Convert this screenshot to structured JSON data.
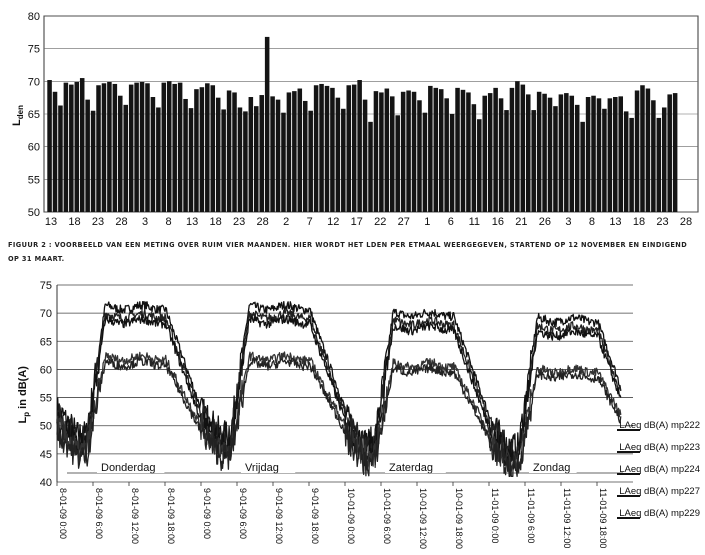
{
  "caption": "FIGUUR 2 : VOORBEELD VAN EEN METING OVER RUIM VIER MAANDEN. HIER WORDT HET LDEN PER ETMAAL WEERGEGEVEN, STARTEND OP 12 NOVEMBER EN EINDIGEND OP 31 MAART.",
  "chart_data": [
    {
      "type": "bar",
      "ylabel": "L",
      "ylabel_sub": "den",
      "ylim": [
        50,
        80
      ],
      "yticks": [
        50,
        55,
        60,
        65,
        70,
        75,
        80
      ],
      "grid": true,
      "x_tick_labels": [
        "13",
        "18",
        "23",
        "28",
        "3",
        "8",
        "13",
        "18",
        "23",
        "28",
        "2",
        "7",
        "12",
        "17",
        "22",
        "27",
        "1",
        "6",
        "11",
        "16",
        "21",
        "26",
        "3",
        "8",
        "13",
        "18",
        "23",
        "28"
      ],
      "values": [
        70.2,
        68.4,
        66.3,
        69.8,
        69.5,
        69.9,
        70.5,
        67.2,
        65.5,
        69.4,
        69.7,
        69.9,
        69.6,
        67.8,
        66.4,
        69.5,
        69.8,
        69.9,
        69.7,
        67.6,
        66.0,
        69.8,
        70.0,
        69.6,
        69.8,
        67.3,
        65.9,
        68.8,
        69.1,
        69.7,
        69.4,
        67.5,
        65.7,
        68.6,
        68.3,
        66.0,
        65.4,
        67.6,
        66.2,
        67.9,
        76.8,
        67.7,
        67.2,
        65.2,
        68.3,
        68.5,
        68.9,
        67.0,
        65.5,
        69.4,
        69.6,
        69.3,
        69.0,
        67.5,
        65.8,
        69.4,
        69.5,
        70.2,
        67.2,
        63.8,
        68.5,
        68.3,
        68.9,
        67.7,
        64.8,
        68.4,
        68.6,
        68.4,
        67.1,
        65.2,
        69.3,
        69.0,
        68.8,
        67.4,
        65.0,
        69.0,
        68.7,
        68.3,
        66.5,
        64.2,
        67.8,
        68.2,
        69.0,
        67.4,
        65.6,
        69.0,
        70.0,
        69.5,
        68.0,
        65.6,
        68.4,
        68.1,
        67.5,
        66.2,
        68.0,
        68.2,
        67.8,
        66.4,
        63.8,
        67.6,
        67.8,
        67.4,
        65.8,
        67.4,
        67.6,
        67.7,
        65.4,
        64.4,
        68.6,
        69.4,
        68.9,
        67.1,
        64.4,
        66.0,
        68.0,
        68.2
      ]
    },
    {
      "type": "line",
      "ylabel": "L",
      "ylabel_sub": "p",
      "ylabel_rest": " in dB(A)",
      "ylim": [
        40,
        75
      ],
      "yticks": [
        40,
        45,
        50,
        55,
        60,
        65,
        70,
        75
      ],
      "grid": true,
      "x_tick_labels": [
        "8-01-09 0:00",
        "8-01-09 6:00",
        "8-01-09 12:00",
        "8-01-09 18:00",
        "9-01-09 0:00",
        "9-01-09 6:00",
        "9-01-09 12:00",
        "9-01-09 18:00",
        "10-01-09 0:00",
        "10-01-09 6:00",
        "10-01-09 12:00",
        "10-01-09 18:00",
        "11-01-09 0:00",
        "11-01-09 6:00",
        "11-01-09 12:00",
        "11-01-09 18:00"
      ],
      "x_hours": [
        0,
        6,
        12,
        18,
        24,
        30,
        36,
        42,
        48,
        54,
        60,
        66,
        72,
        78,
        84,
        90
      ],
      "day_labels": [
        {
          "text": "Donderdag",
          "hour": 6
        },
        {
          "text": "Vrijdag",
          "hour": 30
        },
        {
          "text": "Zaterdag",
          "hour": 54
        },
        {
          "text": "Zondag",
          "hour": 78
        }
      ],
      "legend_position": "right",
      "series": [
        {
          "name": "LAeq dB(A) mp222",
          "day_level": 71.0
        },
        {
          "name": "LAeq dB(A) mp223",
          "day_level": 69.5
        },
        {
          "name": "LAeq dB(A) mp224",
          "day_level": 68.5
        },
        {
          "name": "LAeq dB(A) mp227",
          "day_level": 62.0
        },
        {
          "name": "LAeq dB(A) mp229",
          "day_level": 61.0
        }
      ]
    }
  ]
}
